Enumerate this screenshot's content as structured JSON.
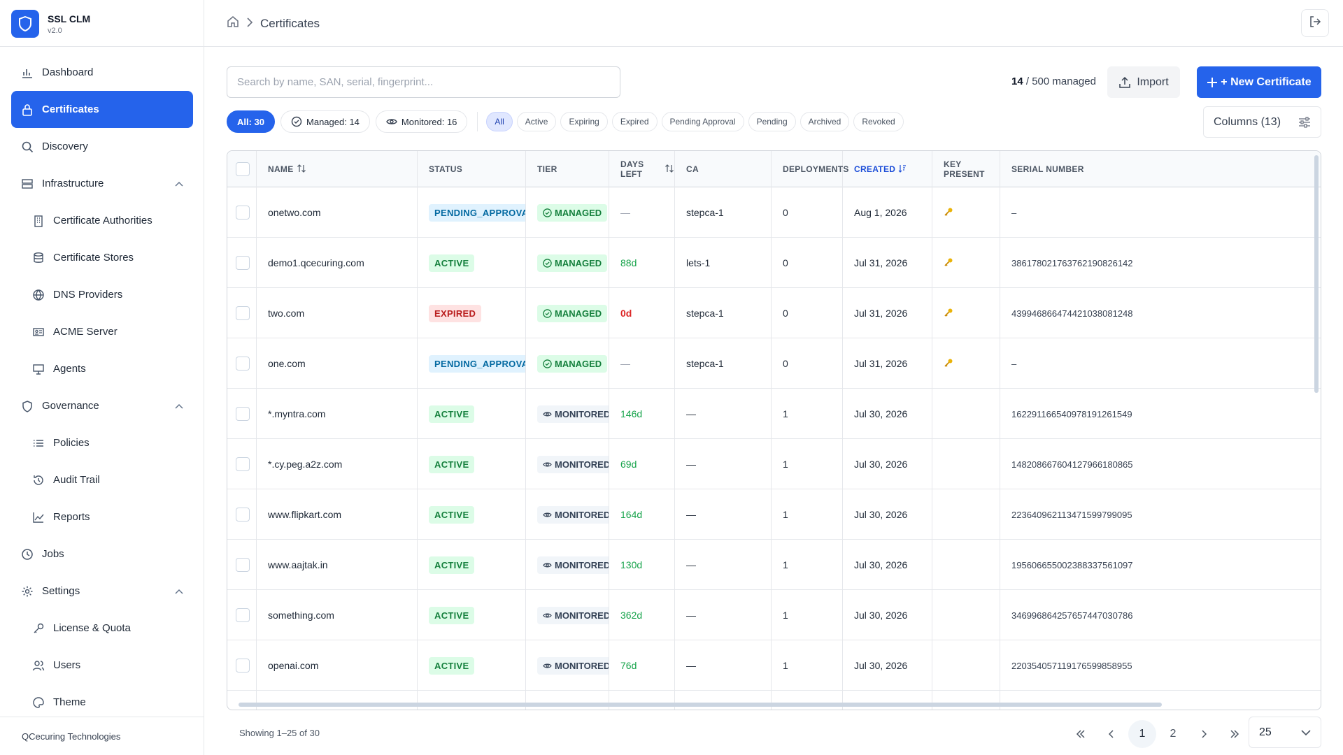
{
  "brand": {
    "name": "SSL CLM",
    "version": "v2.0"
  },
  "sidebar": {
    "items": [
      {
        "label": "Dashboard",
        "icon": "chart-icon",
        "sub": false
      },
      {
        "label": "Certificates",
        "icon": "lock-icon",
        "sub": false,
        "active": true
      },
      {
        "label": "Discovery",
        "icon": "search-icon",
        "sub": false
      },
      {
        "label": "Infrastructure",
        "icon": "server-icon",
        "sub": false,
        "expanded": true
      },
      {
        "label": "Certificate Authorities",
        "icon": "building-icon",
        "sub": true
      },
      {
        "label": "Certificate Stores",
        "icon": "database-icon",
        "sub": true
      },
      {
        "label": "DNS Providers",
        "icon": "globe-icon",
        "sub": true
      },
      {
        "label": "ACME Server",
        "icon": "id-card-icon",
        "sub": true
      },
      {
        "label": "Agents",
        "icon": "monitor-icon",
        "sub": true
      },
      {
        "label": "Governance",
        "icon": "shield-icon",
        "sub": false,
        "expanded": true
      },
      {
        "label": "Policies",
        "icon": "list-icon",
        "sub": true
      },
      {
        "label": "Audit Trail",
        "icon": "history-icon",
        "sub": true
      },
      {
        "label": "Reports",
        "icon": "line-chart-icon",
        "sub": true
      },
      {
        "label": "Jobs",
        "icon": "clock-icon",
        "sub": false
      },
      {
        "label": "Settings",
        "icon": "gear-icon",
        "sub": false,
        "expanded": true
      },
      {
        "label": "License & Quota",
        "icon": "key-icon",
        "sub": true
      },
      {
        "label": "Users",
        "icon": "users-icon",
        "sub": true
      },
      {
        "label": "Theme",
        "icon": "palette-icon",
        "sub": true
      }
    ],
    "footer": "QCecuring Technologies"
  },
  "header": {
    "breadcrumb_current": "Certificates"
  },
  "toolbar": {
    "search_placeholder": "Search by name, SAN, serial, fingerprint...",
    "managed_count": "14",
    "managed_suffix": "/ 500 managed",
    "import_label": "Import",
    "new_label": "+ New Certificate",
    "columns_label": "Columns (13)"
  },
  "summary_pills": [
    {
      "label": "All: 30",
      "icon": "",
      "primary": true
    },
    {
      "label": "Managed: 14",
      "icon": "check-circle-icon",
      "primary": false
    },
    {
      "label": "Monitored: 16",
      "icon": "eye-icon",
      "primary": false
    }
  ],
  "filters": [
    "All",
    "Active",
    "Expiring",
    "Expired",
    "Pending Approval",
    "Pending",
    "Archived",
    "Revoked"
  ],
  "active_filter": "All",
  "table": {
    "columns": [
      "NAME",
      "STATUS",
      "TIER",
      "DAYS LEFT",
      "CA",
      "DEPLOYMENTS",
      "CREATED",
      "KEY PRESENT",
      "SERIAL NUMBER"
    ],
    "rows": [
      {
        "name": "onetwo.com",
        "status": "PENDING_APPROVAL",
        "tier": "MANAGED",
        "days": "—",
        "ca": "stepca-1",
        "deployments": "0",
        "created": "Aug 1, 2026",
        "key": true,
        "serial": "–"
      },
      {
        "name": "demo1.qcecuring.com",
        "status": "ACTIVE",
        "tier": "MANAGED",
        "days": "88d",
        "ca": "lets-1",
        "deployments": "0",
        "created": "Jul 31, 2026",
        "key": true,
        "serial": "386178021763762190826142"
      },
      {
        "name": "two.com",
        "status": "EXPIRED",
        "tier": "MANAGED",
        "days": "0d",
        "ca": "stepca-1",
        "deployments": "0",
        "created": "Jul 31, 2026",
        "key": true,
        "serial": "439946866474421038081248"
      },
      {
        "name": "one.com",
        "status": "PENDING_APPROVAL",
        "tier": "MANAGED",
        "days": "—",
        "ca": "stepca-1",
        "deployments": "0",
        "created": "Jul 31, 2026",
        "key": true,
        "serial": "–"
      },
      {
        "name": "*.myntra.com",
        "status": "ACTIVE",
        "tier": "MONITORED",
        "days": "146d",
        "ca": "—",
        "deployments": "1",
        "created": "Jul 30, 2026",
        "key": false,
        "serial": "162291166540978191261549"
      },
      {
        "name": "*.cy.peg.a2z.com",
        "status": "ACTIVE",
        "tier": "MONITORED",
        "days": "69d",
        "ca": "—",
        "deployments": "1",
        "created": "Jul 30, 2026",
        "key": false,
        "serial": "148208667604127966180865"
      },
      {
        "name": "www.flipkart.com",
        "status": "ACTIVE",
        "tier": "MONITORED",
        "days": "164d",
        "ca": "—",
        "deployments": "1",
        "created": "Jul 30, 2026",
        "key": false,
        "serial": "223640962113471599799095"
      },
      {
        "name": "www.aajtak.in",
        "status": "ACTIVE",
        "tier": "MONITORED",
        "days": "130d",
        "ca": "—",
        "deployments": "1",
        "created": "Jul 30, 2026",
        "key": false,
        "serial": "195606655002388337561097"
      },
      {
        "name": "something.com",
        "status": "ACTIVE",
        "tier": "MONITORED",
        "days": "362d",
        "ca": "—",
        "deployments": "1",
        "created": "Jul 30, 2026",
        "key": false,
        "serial": "346996864257657447030786"
      },
      {
        "name": "openai.com",
        "status": "ACTIVE",
        "tier": "MONITORED",
        "days": "76d",
        "ca": "—",
        "deployments": "1",
        "created": "Jul 30, 2026",
        "key": false,
        "serial": "220354057119176599858955"
      }
    ]
  },
  "footer": {
    "showing": "Showing 1–25 of 30",
    "pages": [
      "1",
      "2"
    ],
    "current_page": "1",
    "page_size": "25"
  },
  "colors": {
    "accent": "#2563eb",
    "active": "#15803d",
    "expired": "#b91c1c",
    "pending": "#0369a1"
  }
}
